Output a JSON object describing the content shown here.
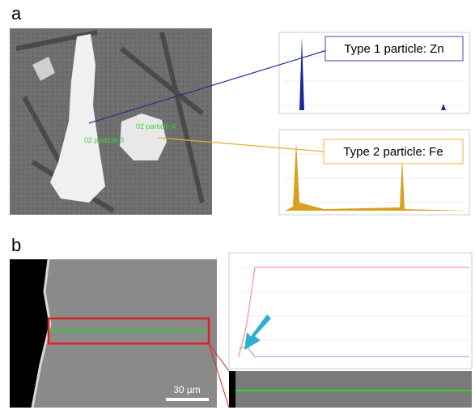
{
  "panel_a": {
    "label": "a",
    "particle_labels": [
      "02 particle 4",
      "02 particle 3"
    ],
    "callouts": [
      "Type 1 particle: Zn",
      "Type 2 particle: Fe"
    ]
  },
  "panel_b": {
    "label": "b",
    "scale_bar": "30 µm"
  }
}
